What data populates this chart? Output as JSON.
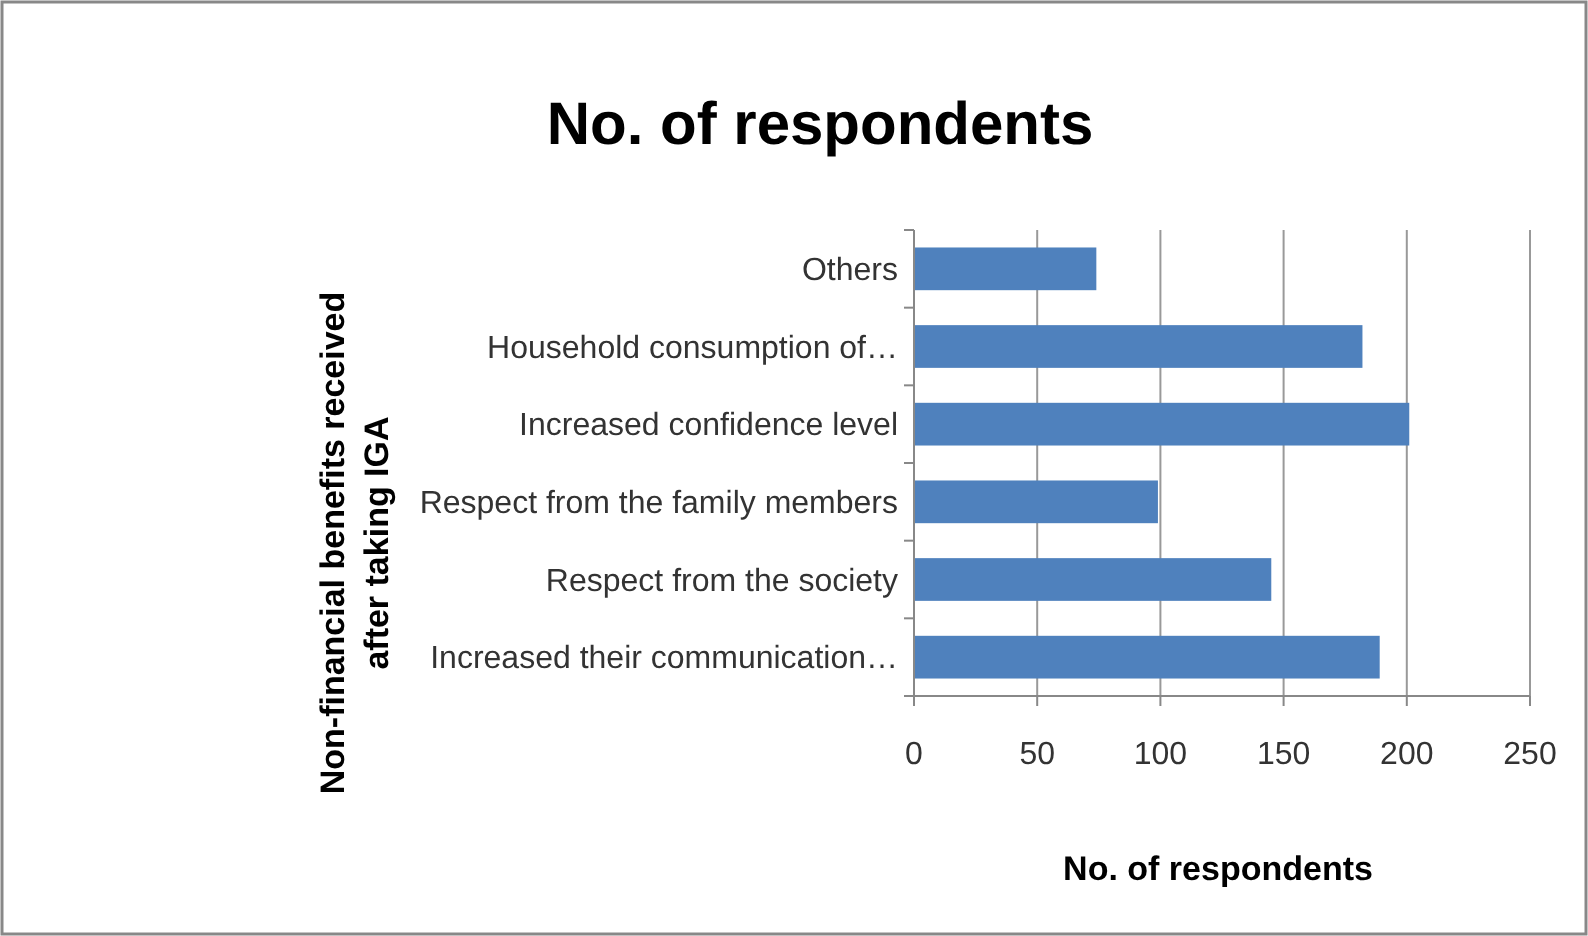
{
  "chart_data": {
    "type": "bar",
    "orientation": "horizontal",
    "title": "No. of respondents",
    "xlabel": "No. of respondents",
    "ylabel": "Non-financial benefits received\nafter taking IGA",
    "categories": [
      "Others",
      "Household consumption of…",
      "Increased confidence level",
      "Respect from the family members",
      "Respect from the society",
      "Increased their communication…"
    ],
    "values": [
      74,
      182,
      201,
      99,
      145,
      189
    ],
    "color": "#4f81bd",
    "xlim": [
      0,
      250
    ],
    "xticks": [
      0,
      50,
      100,
      150,
      200,
      250
    ],
    "grid": "x"
  }
}
